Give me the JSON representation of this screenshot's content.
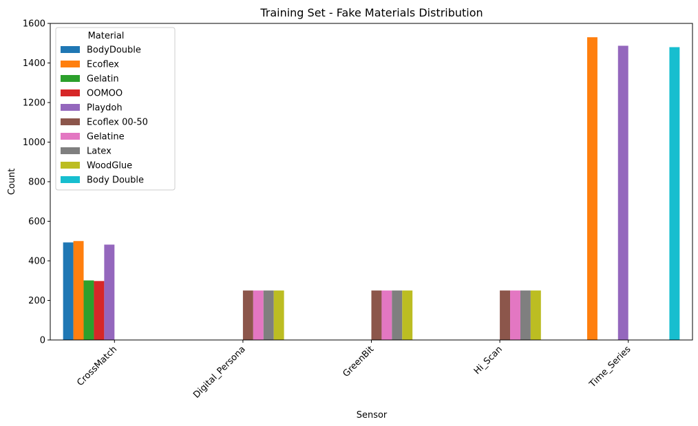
{
  "chart_data": {
    "type": "bar",
    "title": "Training Set - Fake Materials Distribution",
    "xlabel": "Sensor",
    "ylabel": "Count",
    "ylim": [
      0,
      1600
    ],
    "yticks": [
      0,
      200,
      400,
      600,
      800,
      1000,
      1200,
      1400,
      1600
    ],
    "categories": [
      "CrossMatch",
      "Digital_Persona",
      "GreenBit",
      "Hi_Scan",
      "Time_Series"
    ],
    "legend": {
      "title": "Material",
      "placement": "top-left"
    },
    "grid": false,
    "series": [
      {
        "name": "BodyDouble",
        "color": "#1f77b4",
        "values": [
          493,
          null,
          null,
          null,
          null
        ]
      },
      {
        "name": "Ecoflex",
        "color": "#ff7f0e",
        "values": [
          500,
          null,
          null,
          null,
          1530
        ]
      },
      {
        "name": "Gelatin",
        "color": "#2ca02c",
        "values": [
          301,
          null,
          null,
          null,
          null
        ]
      },
      {
        "name": "OOMOO",
        "color": "#d62728",
        "values": [
          298,
          null,
          null,
          null,
          null
        ]
      },
      {
        "name": "Playdoh",
        "color": "#9467bd",
        "values": [
          482,
          null,
          null,
          null,
          1487
        ]
      },
      {
        "name": "Ecoflex 00-50",
        "color": "#8c564b",
        "values": [
          null,
          250,
          250,
          250,
          null
        ]
      },
      {
        "name": "Gelatine",
        "color": "#e377c2",
        "values": [
          null,
          250,
          250,
          250,
          null
        ]
      },
      {
        "name": "Latex",
        "color": "#7f7f7f",
        "values": [
          null,
          250,
          250,
          250,
          null
        ]
      },
      {
        "name": "WoodGlue",
        "color": "#bcbd22",
        "values": [
          null,
          250,
          250,
          250,
          null
        ]
      },
      {
        "name": "Body Double",
        "color": "#17becf",
        "values": [
          null,
          null,
          null,
          null,
          1480
        ]
      }
    ]
  }
}
